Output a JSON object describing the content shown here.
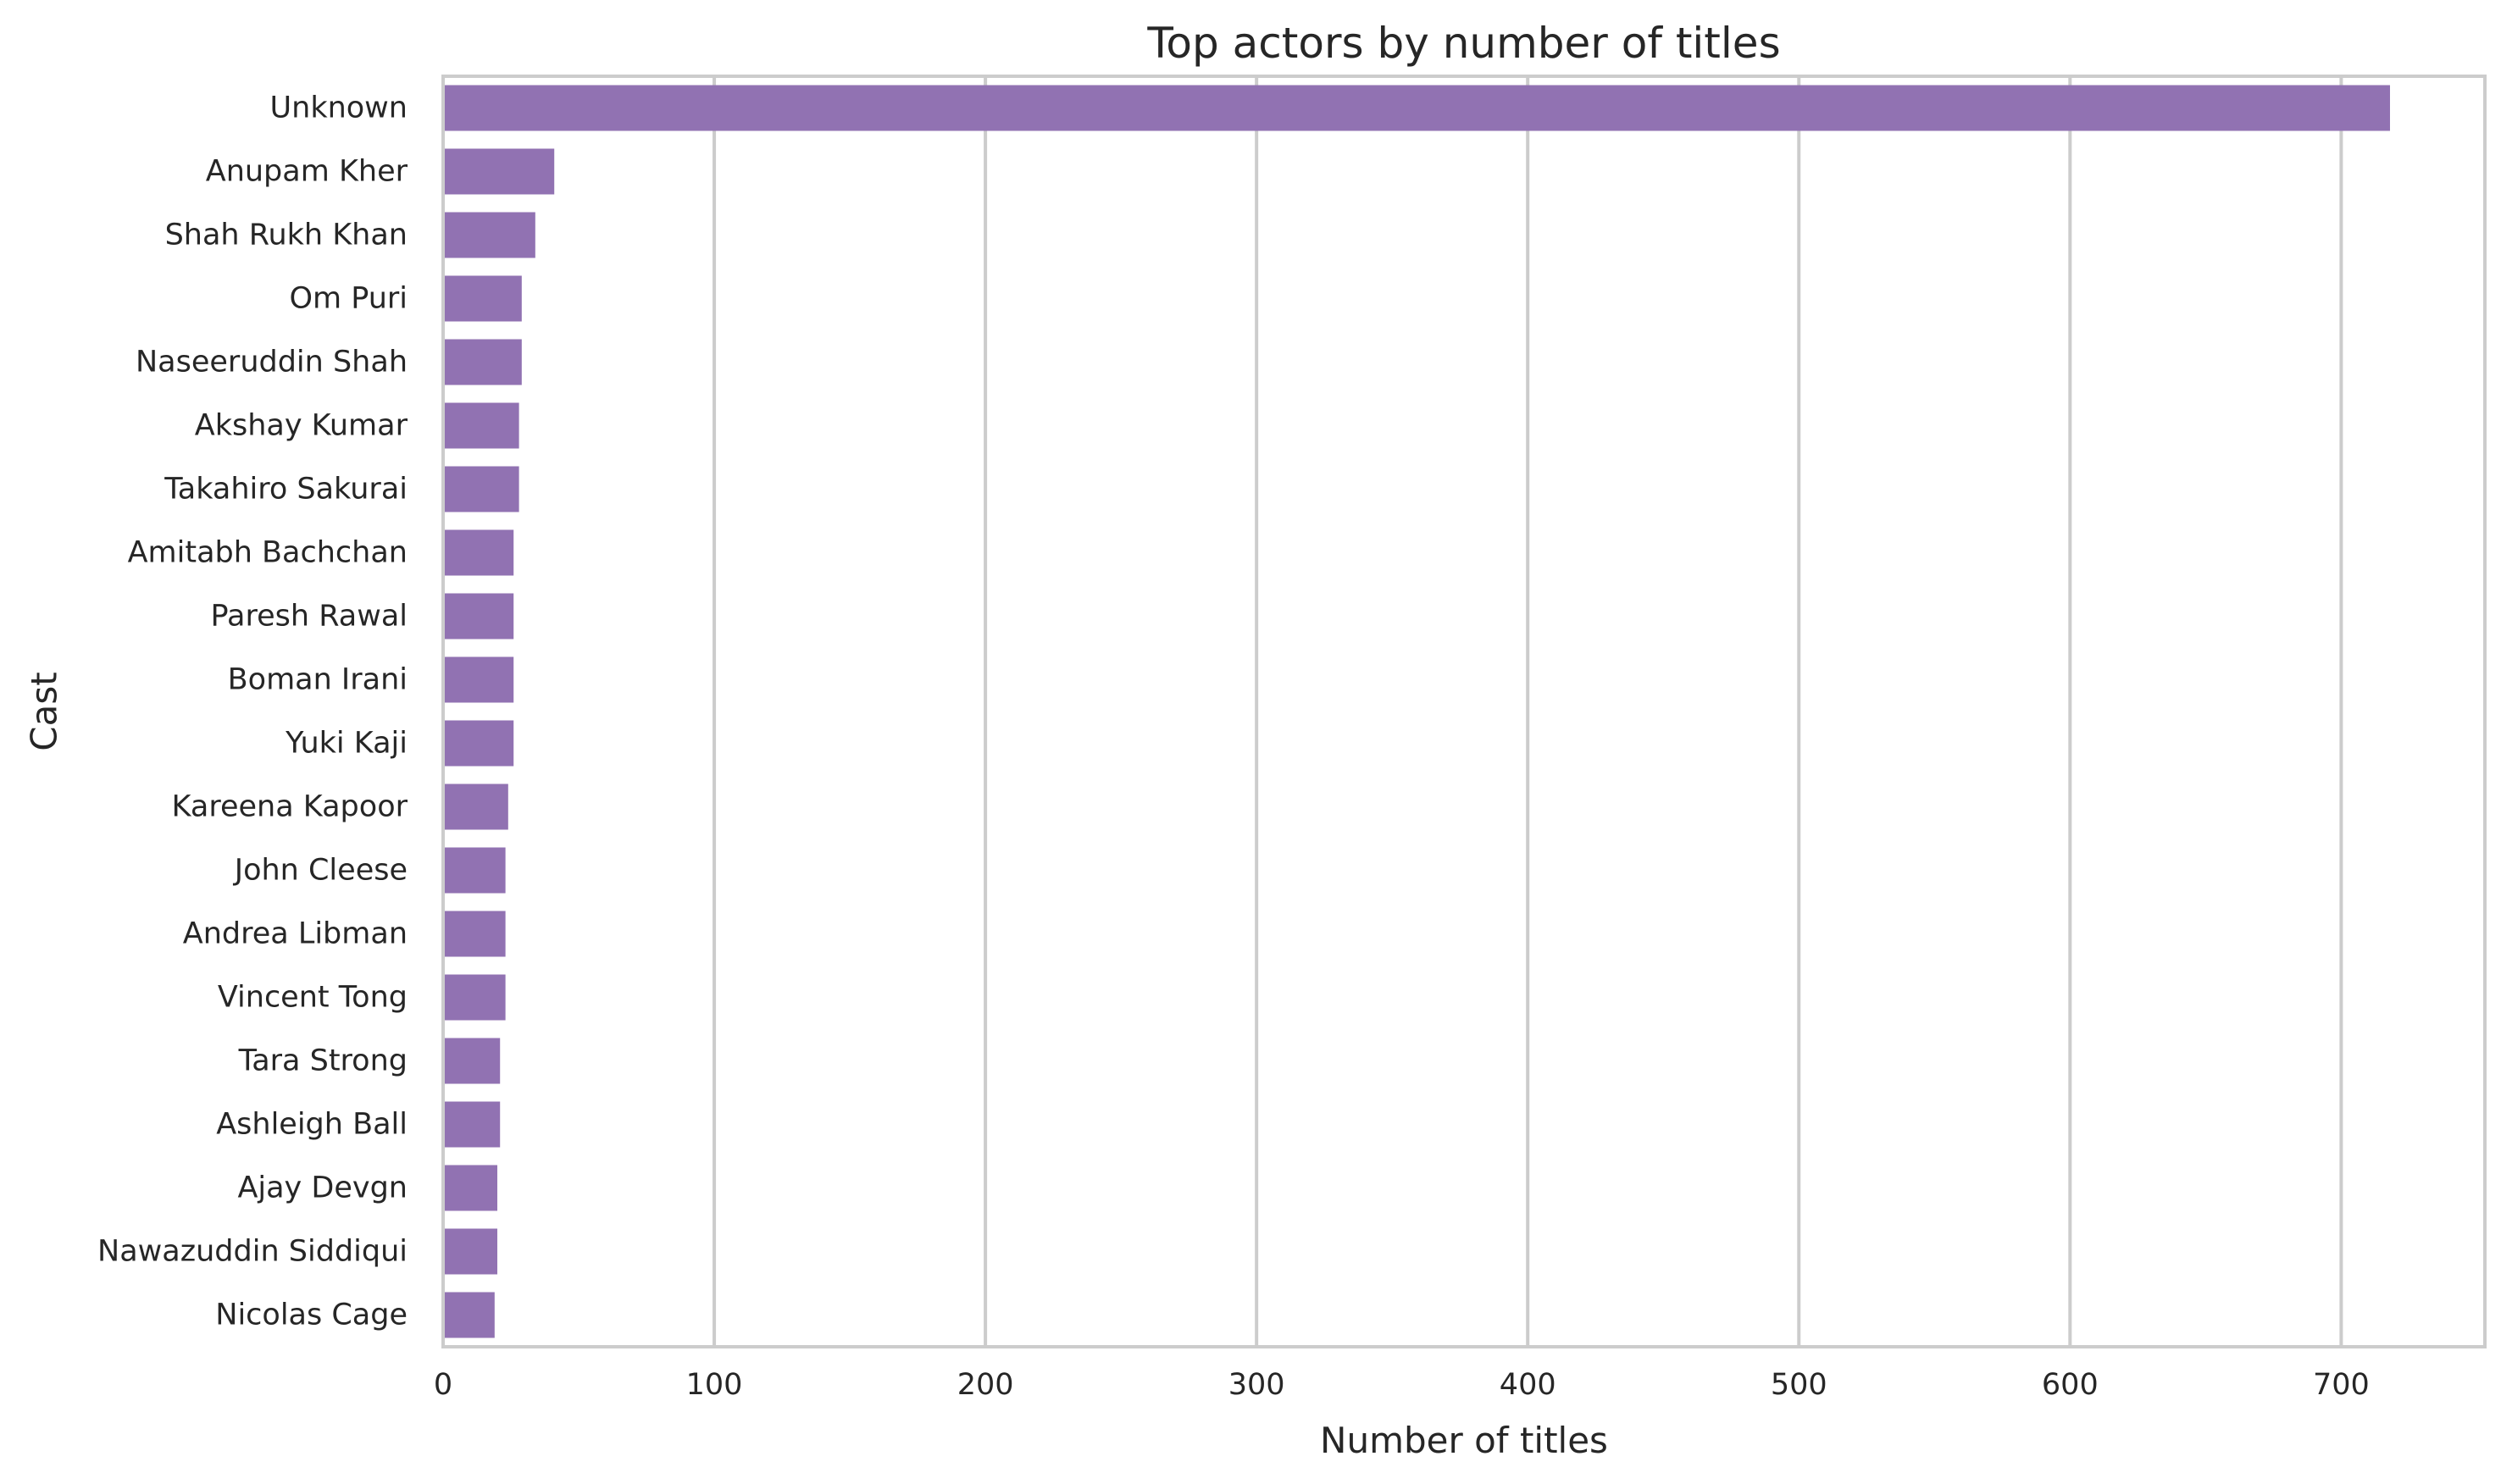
{
  "chart_data": {
    "type": "bar",
    "orientation": "horizontal",
    "title": "Top actors by number of titles",
    "xlabel": "Number of titles",
    "ylabel": "Cast",
    "categories": [
      "Unknown",
      "Anupam Kher",
      "Shah Rukh Khan",
      "Om Puri",
      "Naseeruddin Shah",
      "Akshay Kumar",
      "Takahiro Sakurai",
      "Amitabh Bachchan",
      "Paresh Rawal",
      "Boman Irani",
      "Yuki Kaji",
      "Kareena Kapoor",
      "John Cleese",
      "Andrea Libman",
      "Vincent Tong",
      "Tara Strong",
      "Ashleigh Ball",
      "Ajay Devgn",
      "Nawazuddin Siddiqui",
      "Nicolas Cage"
    ],
    "values": [
      718,
      41,
      34,
      29,
      29,
      28,
      28,
      26,
      26,
      26,
      26,
      24,
      23,
      23,
      23,
      21,
      21,
      20,
      20,
      19
    ],
    "xlim": [
      0,
      753
    ],
    "xticks": [
      0,
      100,
      200,
      300,
      400,
      500,
      600,
      700
    ],
    "xtick_labels": [
      "0",
      "100",
      "200",
      "300",
      "400",
      "500",
      "600",
      "700"
    ],
    "grid": "vertical",
    "bar_color": "#9172b2",
    "grid_color": "#cccccc",
    "text_color": "#262626"
  }
}
